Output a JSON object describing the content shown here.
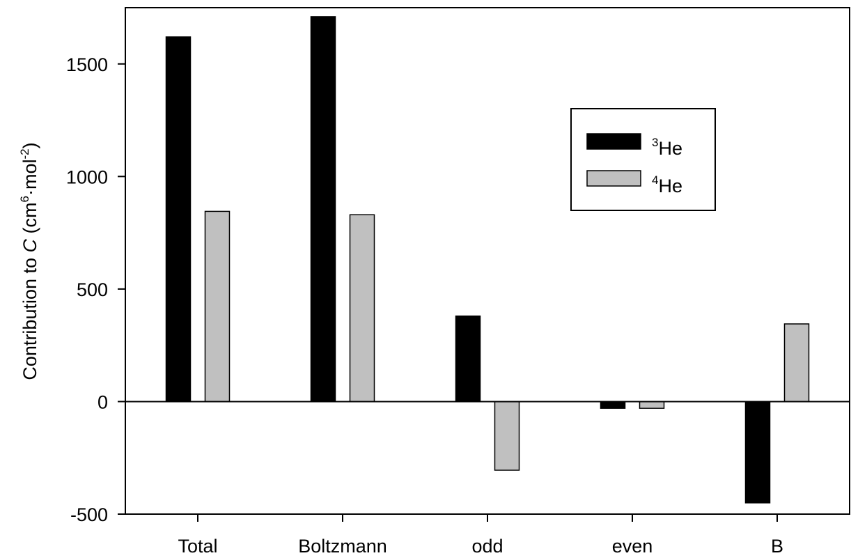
{
  "chart_data": {
    "type": "bar",
    "categories": [
      "Total",
      "Boltzmann",
      "odd",
      "even",
      "B"
    ],
    "series": [
      {
        "name": "3He",
        "label_sup": "3",
        "label_main": "He",
        "color": "#000000",
        "values": [
          1620,
          1710,
          380,
          -30,
          -450
        ]
      },
      {
        "name": "4He",
        "label_sup": "4",
        "label_main": "He",
        "color": "#c0c0c0",
        "values": [
          845,
          830,
          -305,
          -30,
          345
        ]
      }
    ],
    "ylabel": {
      "pre": "Contribution to ",
      "italic": "C",
      "units_open": " (cm",
      "sup1": "6",
      "middle": "·mol",
      "sup2": "-2",
      "units_close": ")"
    },
    "xlabel": "",
    "ylim": [
      -500,
      1750
    ],
    "yticks": [
      -500,
      0,
      500,
      1000,
      1500
    ],
    "grid": false,
    "legend_position": "top-right",
    "zero_line": true
  }
}
